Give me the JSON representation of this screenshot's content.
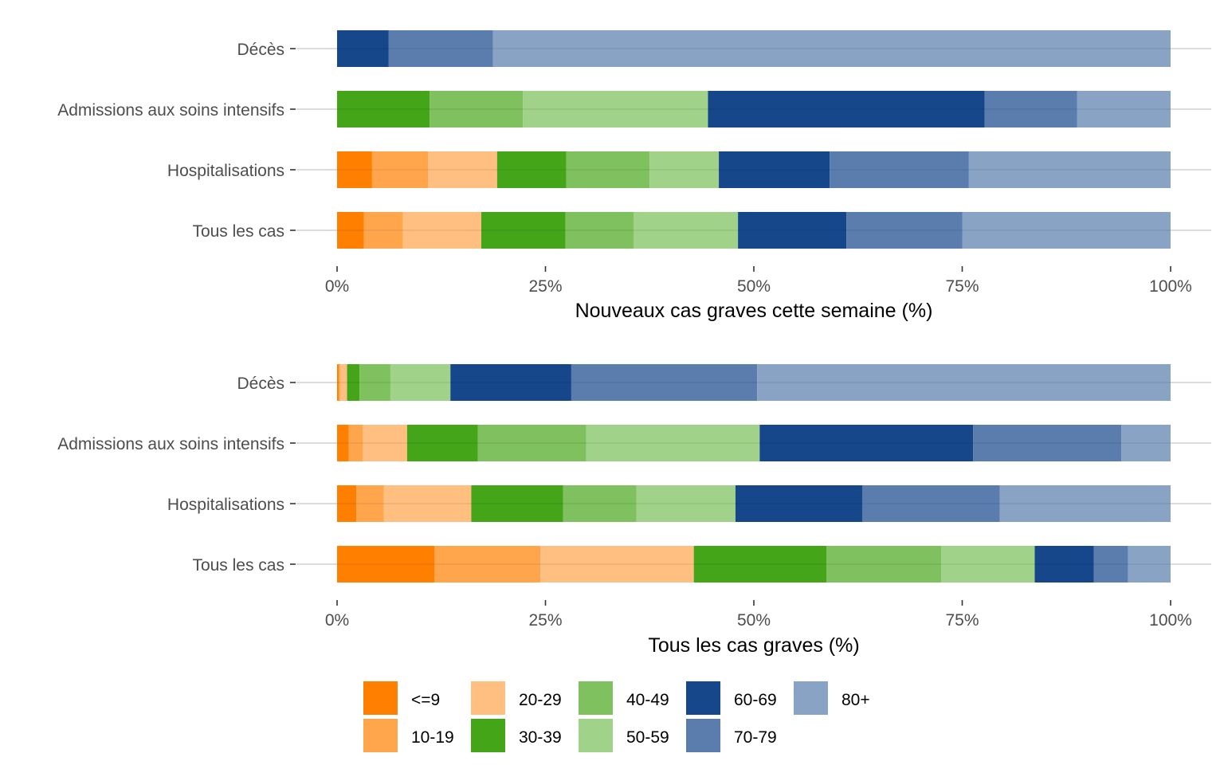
{
  "chart_data": [
    {
      "type": "bar",
      "orientation": "horizontal",
      "stacked": true,
      "title": "",
      "xlabel": "Nouveaux cas graves cette semaine (%)",
      "ylabel": "",
      "xlim": [
        0,
        100
      ],
      "xticks": [
        "0%",
        "25%",
        "50%",
        "75%",
        "100%"
      ],
      "categories": [
        "Décès",
        "Admissions aux soins intensifs",
        "Hospitalisations",
        "Tous les cas"
      ],
      "series": [
        {
          "name": "<=9",
          "values": [
            0,
            0,
            4.2,
            3.2
          ]
        },
        {
          "name": "10-19",
          "values": [
            0,
            0,
            6.7,
            4.7
          ]
        },
        {
          "name": "20-29",
          "values": [
            0,
            0,
            8.3,
            9.4
          ]
        },
        {
          "name": "30-39",
          "values": [
            0,
            11.1,
            8.3,
            10.1
          ]
        },
        {
          "name": "40-49",
          "values": [
            0,
            11.2,
            10.0,
            8.2
          ]
        },
        {
          "name": "50-59",
          "values": [
            0,
            22.2,
            8.3,
            12.5
          ]
        },
        {
          "name": "60-69",
          "values": [
            6.2,
            33.2,
            13.3,
            13.0
          ]
        },
        {
          "name": "70-79",
          "values": [
            12.5,
            11.1,
            16.7,
            13.9
          ]
        },
        {
          "name": "80+",
          "values": [
            81.3,
            11.2,
            24.2,
            25.0
          ]
        }
      ]
    },
    {
      "type": "bar",
      "orientation": "horizontal",
      "stacked": true,
      "title": "",
      "xlabel": "Tous les cas graves (%)",
      "ylabel": "",
      "xlim": [
        0,
        100
      ],
      "xticks": [
        "0%",
        "25%",
        "50%",
        "75%",
        "100%"
      ],
      "categories": [
        "Décès",
        "Admissions aux soins intensifs",
        "Hospitalisations",
        "Tous les cas"
      ],
      "series": [
        {
          "name": "<=9",
          "values": [
            0.2,
            1.4,
            2.3,
            11.7
          ]
        },
        {
          "name": "10-19",
          "values": [
            0.2,
            1.7,
            3.3,
            12.7
          ]
        },
        {
          "name": "20-29",
          "values": [
            0.8,
            5.3,
            10.5,
            18.4
          ]
        },
        {
          "name": "30-39",
          "values": [
            1.5,
            8.5,
            11.0,
            15.9
          ]
        },
        {
          "name": "40-49",
          "values": [
            3.7,
            13.0,
            8.8,
            13.8
          ]
        },
        {
          "name": "50-59",
          "values": [
            7.2,
            20.8,
            11.9,
            11.2
          ]
        },
        {
          "name": "60-69",
          "values": [
            14.5,
            25.6,
            15.2,
            7.1
          ]
        },
        {
          "name": "70-79",
          "values": [
            22.3,
            17.8,
            16.5,
            4.1
          ]
        },
        {
          "name": "80+",
          "values": [
            49.6,
            5.9,
            20.5,
            5.1
          ]
        }
      ]
    }
  ],
  "legend": {
    "placement": "bottom",
    "items": [
      {
        "label": "<=9",
        "color": "#ff8000"
      },
      {
        "label": "10-19",
        "color": "#ffa64d"
      },
      {
        "label": "20-29",
        "color": "#ffbf80"
      },
      {
        "label": "30-39",
        "color": "#45a519"
      },
      {
        "label": "40-49",
        "color": "#7fc15e"
      },
      {
        "label": "50-59",
        "color": "#a1d28a"
      },
      {
        "label": "60-69",
        "color": "#16478a"
      },
      {
        "label": "70-79",
        "color": "#5a7dad"
      },
      {
        "label": "80+",
        "color": "#89a3c5"
      }
    ]
  }
}
